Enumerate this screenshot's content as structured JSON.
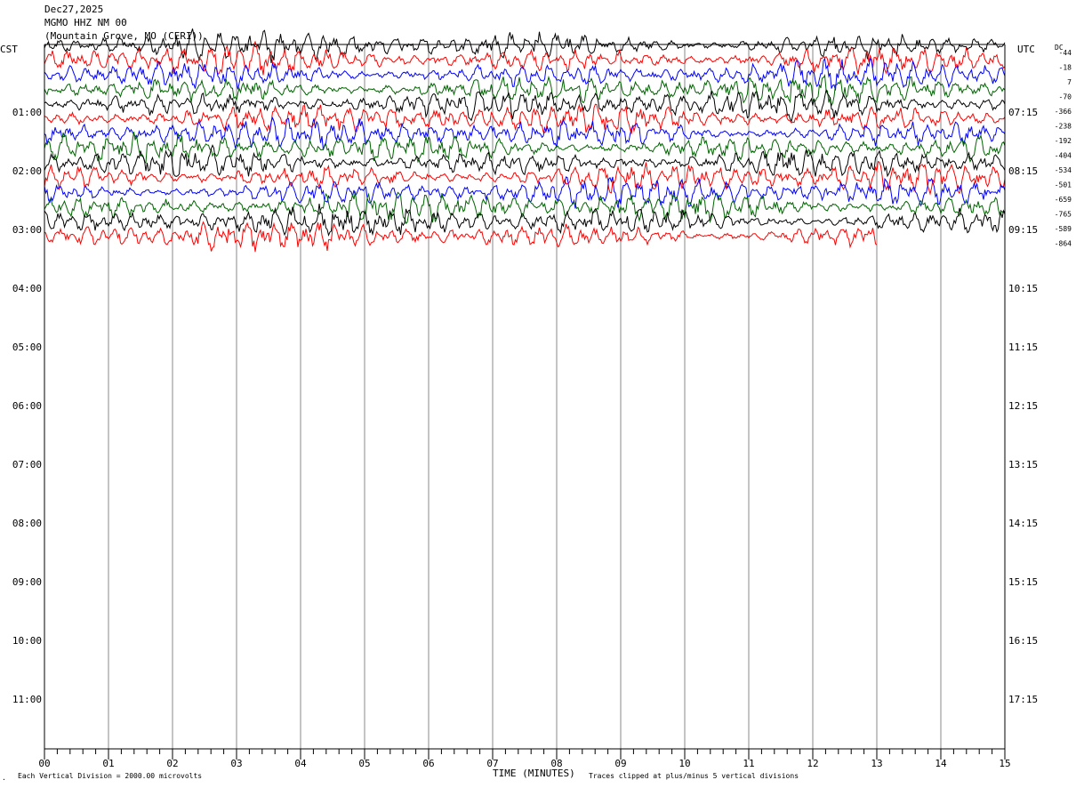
{
  "header": {
    "date": "Dec27,2025",
    "station": "MGMO HHZ NM 00",
    "location": "(Mountain Grove, MO (CERI))"
  },
  "left_zone": "CST",
  "right_zone": "UTC",
  "dc_label": "DC",
  "footer": {
    "vertical_division": "Each Vertical Division = 2000.00 microvolts",
    "xlabel": "TIME (MINUTES)",
    "clip_note": "Traces clipped at plus/minus 5 vertical divisions",
    "corner_mark": "."
  },
  "colors": {
    "trace_cycle": [
      "#000000",
      "#ff0000",
      "#0000ff",
      "#006400"
    ],
    "grid": "#888888"
  },
  "chart_data": {
    "type": "line",
    "title": "",
    "xlabel": "TIME (MINUTES)",
    "ylabel": "",
    "xlim": [
      0,
      15
    ],
    "x_ticks": [
      "00",
      "01",
      "02",
      "03",
      "04",
      "05",
      "06",
      "07",
      "08",
      "09",
      "10",
      "11",
      "12",
      "13",
      "14",
      "15"
    ],
    "y_left_ticks": [
      "01:00",
      "02:00",
      "03:00",
      "04:00",
      "05:00",
      "06:00",
      "07:00",
      "08:00",
      "09:00",
      "10:00",
      "11:00"
    ],
    "y_right_ticks": [
      "07:15",
      "08:15",
      "09:15",
      "10:15",
      "11:15",
      "12:15",
      "13:15",
      "14:15",
      "15:15",
      "16:15",
      "17:15"
    ],
    "dc_offsets": [
      "-44",
      "-18",
      "7",
      "-70",
      "-366",
      "-238",
      "-192",
      "-404",
      "-534",
      "-501",
      "-659",
      "-765",
      "-589",
      "-864"
    ],
    "trace_count": 14,
    "last_trace_end_minute": 13,
    "grid": true
  }
}
